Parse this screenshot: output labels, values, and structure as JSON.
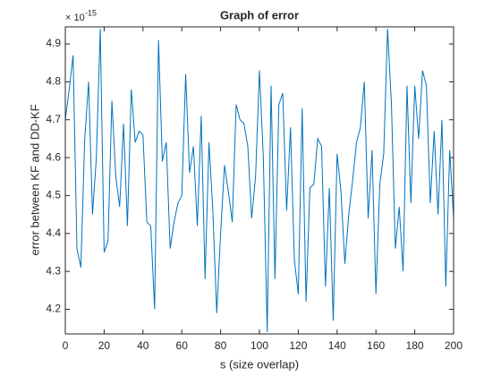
{
  "chart_data": {
    "type": "line",
    "title": "Graph of error",
    "x_label": "s (size overlap)",
    "y_label": "error between KF and DD-KF",
    "y_exponent_base": "× 10",
    "y_exponent": "-15",
    "x": [
      0,
      2,
      4,
      6,
      8,
      10,
      12,
      14,
      16,
      18,
      20,
      22,
      24,
      26,
      28,
      30,
      32,
      34,
      36,
      38,
      40,
      42,
      44,
      46,
      48,
      50,
      52,
      54,
      56,
      58,
      60,
      62,
      64,
      66,
      68,
      70,
      72,
      74,
      76,
      78,
      80,
      82,
      84,
      86,
      88,
      90,
      92,
      94,
      96,
      98,
      100,
      102,
      104,
      106,
      108,
      110,
      112,
      114,
      116,
      118,
      120,
      122,
      124,
      126,
      128,
      130,
      132,
      134,
      136,
      138,
      140,
      142,
      144,
      146,
      148,
      150,
      152,
      154,
      156,
      158,
      160,
      162,
      164,
      166,
      168,
      170,
      172,
      174,
      176,
      178,
      180,
      182,
      184,
      186,
      188,
      190,
      192,
      194,
      196,
      198,
      200
    ],
    "values": [
      4.7,
      4.78,
      4.87,
      4.36,
      4.31,
      4.65,
      4.8,
      4.45,
      4.6,
      4.94,
      4.35,
      4.38,
      4.75,
      4.55,
      4.47,
      4.69,
      4.42,
      4.78,
      4.64,
      4.67,
      4.66,
      4.43,
      4.42,
      4.2,
      4.91,
      4.59,
      4.64,
      4.36,
      4.43,
      4.48,
      4.5,
      4.82,
      4.56,
      4.63,
      4.42,
      4.71,
      4.28,
      4.64,
      4.46,
      4.19,
      4.4,
      4.58,
      4.51,
      4.43,
      4.74,
      4.7,
      4.69,
      4.63,
      4.44,
      4.55,
      4.83,
      4.6,
      4.14,
      4.79,
      4.28,
      4.74,
      4.77,
      4.46,
      4.68,
      4.33,
      4.24,
      4.73,
      4.22,
      4.52,
      4.53,
      4.65,
      4.63,
      4.26,
      4.52,
      4.17,
      4.61,
      4.51,
      4.32,
      4.45,
      4.54,
      4.64,
      4.68,
      4.8,
      4.44,
      4.62,
      4.24,
      4.53,
      4.61,
      4.94,
      4.74,
      4.36,
      4.47,
      4.3,
      4.79,
      4.48,
      4.79,
      4.65,
      4.83,
      4.79,
      4.48,
      4.67,
      4.45,
      4.7,
      4.26,
      4.62,
      4.44
    ],
    "color": "#0072bd",
    "xlim": [
      0,
      200
    ],
    "xticks": [
      0,
      20,
      40,
      60,
      80,
      100,
      120,
      140,
      160,
      180,
      200
    ],
    "ylim": [
      4.135,
      4.945
    ],
    "yticks": [
      4.2,
      4.3,
      4.4,
      4.5,
      4.6,
      4.7,
      4.8,
      4.9
    ],
    "grid": false
  }
}
